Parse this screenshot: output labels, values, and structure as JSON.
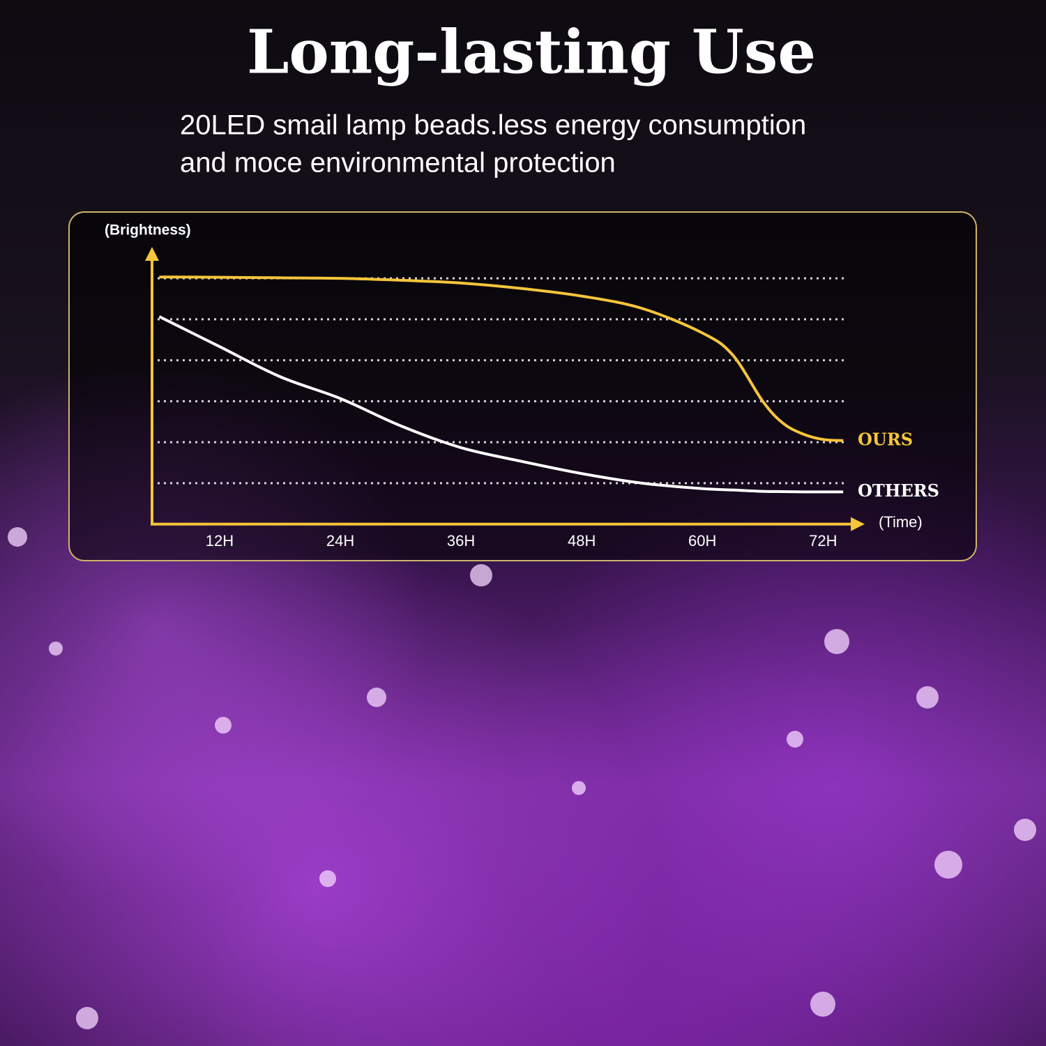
{
  "header": {
    "title": "Long-lasting Use",
    "subtitle_lines": [
      "20LED smail lamp beads.less energy consumption",
      "and moce environmental protection"
    ]
  },
  "chart_data": {
    "type": "line",
    "y_label": "(Brightness)",
    "x_label": "(Time)",
    "xlim": [
      5,
      76
    ],
    "ylim": [
      0,
      100
    ],
    "xticks": [
      {
        "value": 12,
        "label": "12H"
      },
      {
        "value": 24,
        "label": "24H"
      },
      {
        "value": 36,
        "label": "36H"
      },
      {
        "value": 48,
        "label": "48H"
      },
      {
        "value": 60,
        "label": "60H"
      },
      {
        "value": 72,
        "label": "72H"
      }
    ],
    "yticks": [
      15,
      30,
      45,
      60,
      75,
      90
    ],
    "grid": true,
    "axis_color": "#f5c53a",
    "grid_color": "#d8d2dc",
    "x": [
      6,
      12,
      18,
      24,
      30,
      36,
      42,
      48,
      54,
      60,
      63,
      66,
      68,
      70,
      72,
      74
    ],
    "series": [
      {
        "name": "OURS",
        "color": "#f5c53a",
        "values": [
          90.5,
          90.4,
          90.2,
          90,
          89.3,
          88.3,
          86.3,
          83.5,
          79,
          70,
          62,
          45,
          37,
          33,
          31,
          30.6
        ]
      },
      {
        "name": "OTHERS",
        "color": "#ffffff",
        "values": [
          76,
          65,
          54,
          46,
          36,
          28,
          23,
          18.5,
          15,
          13,
          12.5,
          12,
          11.9,
          11.8,
          11.8,
          11.8
        ]
      }
    ]
  }
}
